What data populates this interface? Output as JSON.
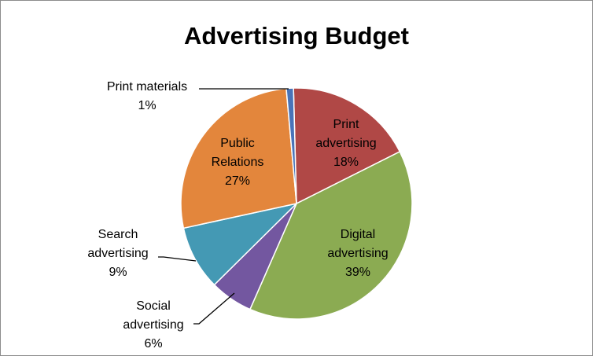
{
  "chart_data": {
    "type": "pie",
    "title": "Advertising Budget",
    "slices": [
      {
        "lines": [
          "Print",
          "advertising"
        ],
        "pct_label": "18%",
        "value": 18,
        "color": "#b04846"
      },
      {
        "lines": [
          "Digital",
          "advertising"
        ],
        "pct_label": "39%",
        "value": 39,
        "color": "#8bab52"
      },
      {
        "lines": [
          "Social",
          "advertising"
        ],
        "pct_label": "6%",
        "value": 6,
        "color": "#7357a0"
      },
      {
        "lines": [
          "Search",
          "advertising"
        ],
        "pct_label": "9%",
        "value": 9,
        "color": "#4499b4"
      },
      {
        "lines": [
          "Public",
          "Relations"
        ],
        "pct_label": "27%",
        "value": 27,
        "color": "#e3863c"
      },
      {
        "lines": [
          "Print materials"
        ],
        "pct_label": "1%",
        "value": 1,
        "color": "#4a74b8"
      }
    ]
  }
}
